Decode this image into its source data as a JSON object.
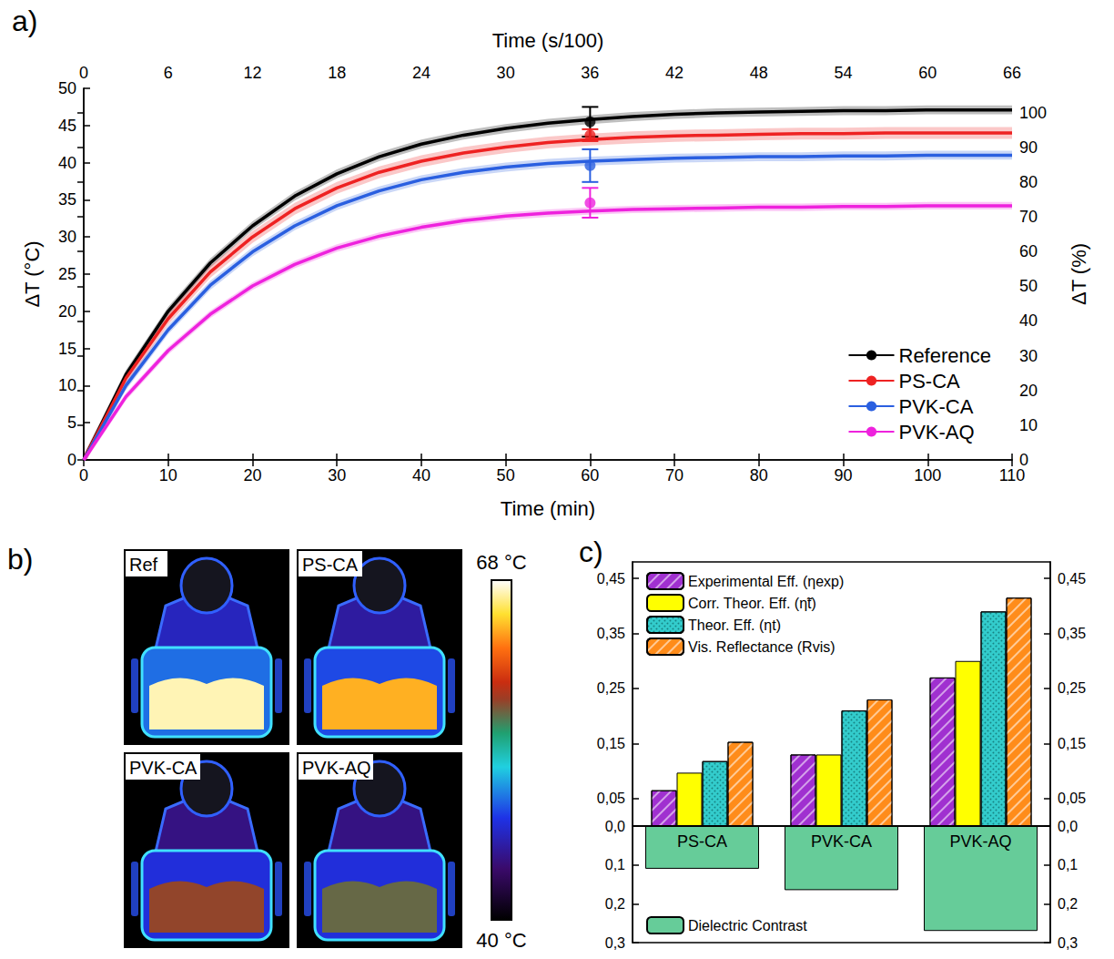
{
  "chart_data": [
    {
      "type": "line",
      "panel_label": "a)",
      "x_label": "Time (min)",
      "x2_label": "Time (s/100)",
      "y_label": "ΔT (°C)",
      "y2_label": "ΔT (%)",
      "x": [
        0,
        5,
        10,
        15,
        20,
        25,
        30,
        35,
        40,
        45,
        50,
        55,
        60,
        65,
        70,
        75,
        80,
        85,
        90,
        95,
        100,
        105,
        110
      ],
      "xlim": [
        0,
        110
      ],
      "xticks": [
        0,
        10,
        20,
        30,
        40,
        50,
        60,
        70,
        80,
        90,
        100,
        110
      ],
      "x2lim": [
        0,
        66
      ],
      "x2ticks": [
        0,
        6,
        12,
        18,
        24,
        30,
        36,
        42,
        48,
        54,
        60,
        66
      ],
      "ylim": [
        0,
        50
      ],
      "yticks": [
        0,
        5,
        10,
        15,
        20,
        25,
        30,
        35,
        40,
        45,
        50
      ],
      "y2lim": [
        0,
        107
      ],
      "y2ticks": [
        0,
        10,
        20,
        30,
        40,
        50,
        60,
        70,
        80,
        90,
        100
      ],
      "grid": false,
      "legend": "lower right",
      "series": [
        {
          "name": "Reference",
          "color": "#000000",
          "values": [
            0,
            11.5,
            20,
            26.5,
            31.5,
            35.5,
            38.5,
            40.8,
            42.5,
            43.7,
            44.6,
            45.3,
            45.8,
            46.2,
            46.5,
            46.7,
            46.8,
            46.9,
            47.0,
            47.0,
            47.1,
            47.1,
            47.1
          ],
          "band": 0.6,
          "point": {
            "x": 60,
            "y": 45.5,
            "error": 2.0
          }
        },
        {
          "name": "PS-CA",
          "color": "#ee2222",
          "values": [
            0,
            11,
            19,
            25.3,
            30,
            33.8,
            36.6,
            38.7,
            40.2,
            41.3,
            42.1,
            42.7,
            43.1,
            43.4,
            43.6,
            43.7,
            43.8,
            43.9,
            43.9,
            44,
            44,
            44,
            44
          ],
          "band": 0.8,
          "point": {
            "x": 60,
            "y": 43.7,
            "error": 0.8
          }
        },
        {
          "name": "PVK-CA",
          "color": "#2a5fe0",
          "values": [
            0,
            10,
            17.5,
            23.5,
            28,
            31.5,
            34.2,
            36.2,
            37.7,
            38.7,
            39.4,
            39.9,
            40.2,
            40.4,
            40.6,
            40.7,
            40.8,
            40.8,
            40.9,
            40.9,
            41,
            41,
            41
          ],
          "band": 0.6,
          "point": {
            "x": 60,
            "y": 39.6,
            "error": 2.2
          }
        },
        {
          "name": "PVK-AQ",
          "color": "#ee22dd",
          "values": [
            0,
            8.5,
            14.7,
            19.6,
            23.4,
            26.3,
            28.5,
            30.1,
            31.3,
            32.2,
            32.8,
            33.2,
            33.5,
            33.7,
            33.8,
            33.9,
            34,
            34,
            34.1,
            34.1,
            34.2,
            34.2,
            34.2
          ],
          "band": 0.5,
          "point": {
            "x": 60,
            "y": 34.6,
            "error": 2.0
          }
        }
      ]
    },
    {
      "type": "thermal_images",
      "panel_label": "b)",
      "images": [
        {
          "label": "Ref",
          "hot": 67,
          "body": 50
        },
        {
          "label": "PS-CA",
          "hot": 64,
          "body": 49
        },
        {
          "label": "PVK-CA",
          "hot": 58,
          "body": 48
        },
        {
          "label": "PVK-AQ",
          "hot": 57,
          "body": 48
        }
      ],
      "colorbar_range": [
        40,
        68
      ],
      "colorbar_ticks": [
        {
          "value": 68,
          "label": "68 °C"
        },
        {
          "value": 40,
          "label": "40 °C"
        }
      ]
    },
    {
      "type": "bar",
      "panel_label": "c)",
      "categories": [
        "PS-CA",
        "PVK-CA",
        "PVK-AQ"
      ],
      "ylim": [
        0,
        0.48
      ],
      "yticks": [
        {
          "value": 0,
          "label": "0,0"
        },
        {
          "value": 0.05,
          "label": "0,05"
        },
        {
          "value": 0.15,
          "label": "0,15"
        },
        {
          "value": 0.25,
          "label": "0,25"
        },
        {
          "value": 0.35,
          "label": "0,35"
        },
        {
          "value": 0.45,
          "label": "0,45"
        }
      ],
      "y2lim": [
        0,
        0.3
      ],
      "y2ticks": [
        {
          "value": 0.1,
          "label": "0,1"
        },
        {
          "value": 0.2,
          "label": "0,2"
        },
        {
          "value": 0.3,
          "label": "0,3"
        }
      ],
      "grid": false,
      "legend": "upper left",
      "series": [
        {
          "name": "Experimental Eff. (ηexp)",
          "color": "#a030d0",
          "values": [
            0.065,
            0.13,
            0.27
          ]
        },
        {
          "name": "Corr. Theor. Eff. (η̃t)",
          "color": "#ffff00",
          "values": [
            0.097,
            0.13,
            0.3
          ]
        },
        {
          "name": "Theor. Eff. (ηt)",
          "color": "#33cccc",
          "values": [
            0.118,
            0.21,
            0.39
          ]
        },
        {
          "name": "Vis. Reflectance (Rvis)",
          "color": "#ff8c1a",
          "values": [
            0.153,
            0.23,
            0.415
          ]
        },
        {
          "name": "Dielectric Contrast",
          "color": "#66cc99",
          "values": [
            0.11,
            0.165,
            0.27
          ],
          "axis": "y2"
        }
      ]
    }
  ]
}
